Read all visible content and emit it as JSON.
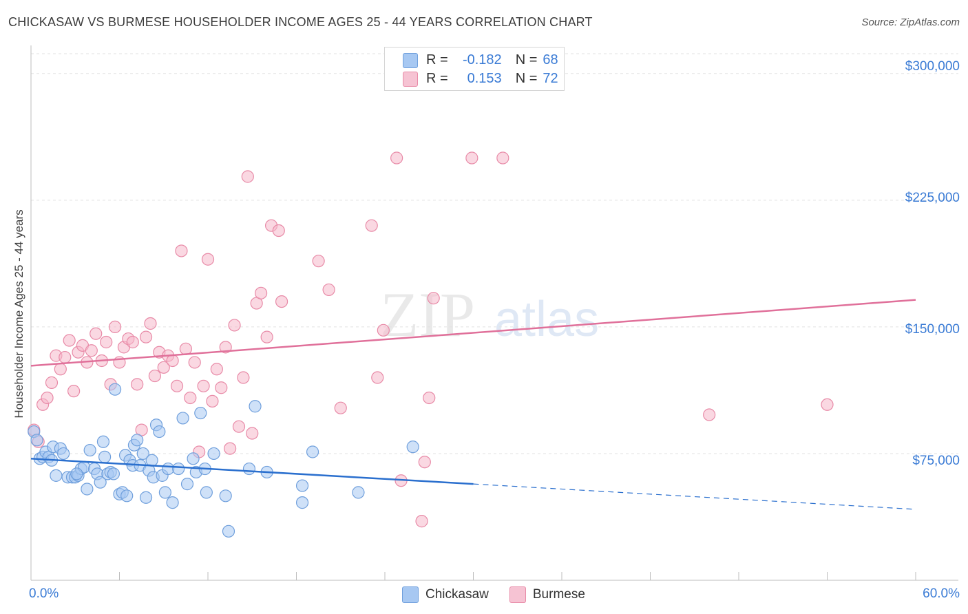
{
  "header": {
    "title": "CHICKASAW VS BURMESE HOUSEHOLDER INCOME AGES 25 - 44 YEARS CORRELATION CHART",
    "source": "Source: ZipAtlas.com"
  },
  "watermark": {
    "zip": "ZIP",
    "atlas": "atlas"
  },
  "legend": {
    "rows": [
      {
        "r_label": "R =",
        "r_value": "-0.182",
        "n_label": "N =",
        "n_value": "68",
        "color": "#a7c8f2"
      },
      {
        "r_label": "R =",
        "r_value": "0.153",
        "n_label": "N =",
        "n_value": "72",
        "color": "#f6b8cb"
      }
    ]
  },
  "bottom_legend": {
    "series1": "Chickasaw",
    "series2": "Burmese"
  },
  "colors": {
    "chickasaw_fill": "#a7c8f2",
    "chickasaw_stroke": "#6f9fdc",
    "chickasaw_line": "#2a6fce",
    "burmese_fill": "#f6b8cb",
    "burmese_stroke": "#e88aa7",
    "burmese_line": "#e0709a",
    "axis_text": "#3a7bd5",
    "grid": "#e2e2e2"
  },
  "chart_data": {
    "type": "scatter",
    "title": "CHICKASAW VS BURMESE HOUSEHOLDER INCOME AGES 25 - 44 YEARS CORRELATION CHART",
    "xlabel": "",
    "ylabel": "Householder Income Ages 25 - 44 years",
    "xlim": [
      0,
      60
    ],
    "ylim": [
      0,
      315000
    ],
    "x_tick_labels": [
      "0.0%",
      "60.0%"
    ],
    "y_ticks": [
      75000,
      150000,
      225000,
      300000
    ],
    "y_tick_labels": [
      "$75,000",
      "$150,000",
      "$225,000",
      "$300,000"
    ],
    "grid": true,
    "legend_position": "top-center",
    "series": [
      {
        "name": "Chickasaw",
        "trend": {
          "x": [
            0,
            30,
            60
          ],
          "y": [
            72000,
            57000,
            42000
          ],
          "solid_until_x": 30
        },
        "points": [
          [
            0.2,
            88000
          ],
          [
            0.4,
            83000
          ],
          [
            0.6,
            72000
          ],
          [
            0.8,
            73000
          ],
          [
            1.0,
            76000
          ],
          [
            1.2,
            73000
          ],
          [
            1.4,
            71000
          ],
          [
            1.5,
            79000
          ],
          [
            1.7,
            62000
          ],
          [
            2.0,
            78000
          ],
          [
            2.2,
            75000
          ],
          [
            2.5,
            61000
          ],
          [
            2.8,
            61000
          ],
          [
            3.0,
            61000
          ],
          [
            3.2,
            62000
          ],
          [
            3.4,
            66000
          ],
          [
            3.6,
            67000
          ],
          [
            3.8,
            54000
          ],
          [
            4.0,
            77000
          ],
          [
            4.3,
            66000
          ],
          [
            4.5,
            63000
          ],
          [
            4.7,
            58000
          ],
          [
            4.9,
            82000
          ],
          [
            5.0,
            73000
          ],
          [
            5.2,
            63000
          ],
          [
            5.4,
            64000
          ],
          [
            5.6,
            63000
          ],
          [
            5.7,
            113000
          ],
          [
            6.0,
            51000
          ],
          [
            6.2,
            52000
          ],
          [
            6.4,
            74000
          ],
          [
            6.5,
            50000
          ],
          [
            6.7,
            71000
          ],
          [
            6.9,
            68000
          ],
          [
            7.0,
            80000
          ],
          [
            7.2,
            83000
          ],
          [
            7.4,
            68000
          ],
          [
            7.6,
            75000
          ],
          [
            7.8,
            49000
          ],
          [
            8.0,
            65000
          ],
          [
            8.2,
            71000
          ],
          [
            8.3,
            61000
          ],
          [
            8.5,
            92000
          ],
          [
            8.7,
            88000
          ],
          [
            8.9,
            62000
          ],
          [
            9.1,
            52000
          ],
          [
            9.3,
            66000
          ],
          [
            9.6,
            46000
          ],
          [
            10.0,
            66000
          ],
          [
            10.3,
            96000
          ],
          [
            10.6,
            57000
          ],
          [
            11.0,
            72000
          ],
          [
            11.2,
            64000
          ],
          [
            11.5,
            99000
          ],
          [
            11.8,
            66000
          ],
          [
            11.9,
            52000
          ],
          [
            12.4,
            75000
          ],
          [
            13.2,
            50000
          ],
          [
            13.4,
            29000
          ],
          [
            14.8,
            66000
          ],
          [
            15.2,
            103000
          ],
          [
            16.0,
            64000
          ],
          [
            18.4,
            56000
          ],
          [
            18.4,
            46000
          ],
          [
            19.1,
            76000
          ],
          [
            22.2,
            52000
          ],
          [
            25.9,
            79000
          ],
          [
            3.1,
            63000
          ]
        ]
      },
      {
        "name": "Burmese",
        "trend": {
          "x": [
            0,
            60
          ],
          "y": [
            127000,
            166000
          ]
        },
        "points": [
          [
            0.2,
            89000
          ],
          [
            0.5,
            82000
          ],
          [
            0.8,
            104000
          ],
          [
            1.1,
            108000
          ],
          [
            1.4,
            117000
          ],
          [
            1.7,
            133000
          ],
          [
            2.0,
            125000
          ],
          [
            2.3,
            132000
          ],
          [
            2.6,
            142000
          ],
          [
            2.9,
            112000
          ],
          [
            3.2,
            135000
          ],
          [
            3.5,
            139000
          ],
          [
            3.8,
            129000
          ],
          [
            4.1,
            136000
          ],
          [
            4.4,
            146000
          ],
          [
            4.8,
            130000
          ],
          [
            5.1,
            141000
          ],
          [
            5.4,
            116000
          ],
          [
            5.7,
            150000
          ],
          [
            6.0,
            129000
          ],
          [
            6.3,
            138000
          ],
          [
            6.6,
            143000
          ],
          [
            6.9,
            141000
          ],
          [
            7.2,
            116000
          ],
          [
            7.5,
            89000
          ],
          [
            7.8,
            144000
          ],
          [
            8.1,
            152000
          ],
          [
            8.4,
            121000
          ],
          [
            8.7,
            135000
          ],
          [
            9.0,
            126000
          ],
          [
            9.3,
            133000
          ],
          [
            9.6,
            130000
          ],
          [
            9.9,
            115000
          ],
          [
            10.2,
            195000
          ],
          [
            10.5,
            137000
          ],
          [
            10.8,
            108000
          ],
          [
            11.1,
            129000
          ],
          [
            11.4,
            76000
          ],
          [
            11.7,
            115000
          ],
          [
            12.0,
            190000
          ],
          [
            12.3,
            106000
          ],
          [
            12.6,
            125000
          ],
          [
            12.9,
            114000
          ],
          [
            13.2,
            138000
          ],
          [
            13.5,
            78000
          ],
          [
            13.8,
            151000
          ],
          [
            14.1,
            91000
          ],
          [
            14.4,
            120000
          ],
          [
            14.7,
            239000
          ],
          [
            15.0,
            87000
          ],
          [
            15.3,
            164000
          ],
          [
            15.6,
            170000
          ],
          [
            16.0,
            144000
          ],
          [
            16.3,
            210000
          ],
          [
            16.8,
            207000
          ],
          [
            17.0,
            165000
          ],
          [
            19.5,
            189000
          ],
          [
            20.2,
            172000
          ],
          [
            21.0,
            102000
          ],
          [
            23.1,
            210000
          ],
          [
            23.5,
            120000
          ],
          [
            23.9,
            148000
          ],
          [
            24.8,
            250000
          ],
          [
            25.1,
            59000
          ],
          [
            26.5,
            35000
          ],
          [
            26.7,
            70000
          ],
          [
            27.0,
            108000
          ],
          [
            27.3,
            167000
          ],
          [
            29.9,
            250000
          ],
          [
            32.0,
            250000
          ],
          [
            46.0,
            98000
          ],
          [
            54.0,
            104000
          ]
        ]
      }
    ]
  }
}
